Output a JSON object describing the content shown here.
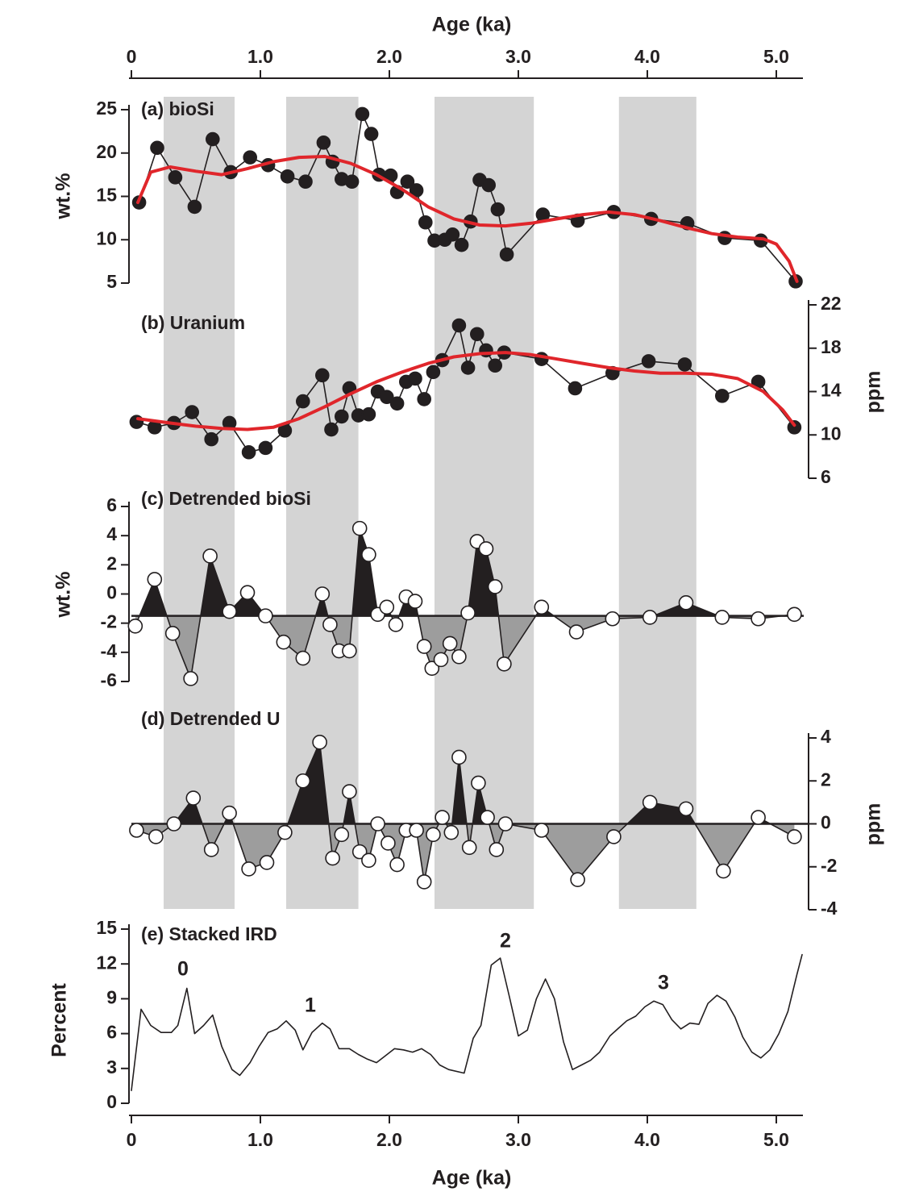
{
  "chart_data": [
    {
      "type": "line",
      "title": "(a) bioSi",
      "ylabel": "wt.%",
      "y_axis_side": "left",
      "xlabel": "Age (ka)",
      "x_axis_side": "top",
      "xlim": [
        0,
        5.2
      ],
      "xticks": [
        0,
        {
          "value": 1,
          "label": "1.0"
        },
        {
          "value": 2,
          "label": "2.0"
        },
        {
          "value": 3,
          "label": "3.0"
        },
        {
          "value": 4,
          "label": "4.0"
        },
        {
          "value": 5,
          "label": "5.0"
        }
      ],
      "shaded_intervals": [
        [
          0.25,
          0.8
        ],
        [
          1.2,
          1.76
        ],
        [
          2.35,
          3.12
        ],
        [
          3.78,
          4.38
        ]
      ],
      "shading_color": "#d4d4d4",
      "ylim": [
        5,
        25
      ],
      "yticks": [
        5,
        10,
        15,
        20,
        25
      ],
      "series": [
        {
          "x": [
            0.06,
            0.2,
            0.34,
            0.49,
            0.63,
            0.77,
            0.92,
            1.06,
            1.21,
            1.35,
            1.49,
            1.56,
            1.63,
            1.71,
            1.79,
            1.86,
            1.92,
            2.01,
            2.06,
            2.14,
            2.21,
            2.28,
            2.35,
            2.43,
            2.49,
            2.56,
            2.63,
            2.7,
            2.77,
            2.84,
            2.91,
            3.19,
            3.46,
            3.74,
            4.03,
            4.31,
            4.6,
            4.88,
            5.15
          ],
          "values": [
            14.3,
            20.6,
            17.2,
            13.8,
            21.6,
            17.8,
            19.5,
            18.6,
            17.3,
            16.7,
            21.2,
            19.0,
            17.0,
            16.7,
            24.5,
            22.2,
            17.5,
            17.4,
            15.5,
            16.7,
            15.7,
            12.0,
            9.9,
            10.0,
            10.6,
            9.4,
            12.1,
            16.9,
            16.3,
            13.5,
            8.3,
            12.9,
            12.2,
            13.2,
            12.4,
            11.9,
            10.2,
            9.9,
            5.2
          ],
          "color": "#231f20",
          "marker": "filled"
        },
        {
          "x": [
            0.05,
            0.15,
            0.3,
            0.5,
            0.7,
            0.9,
            1.1,
            1.3,
            1.5,
            1.7,
            1.9,
            2.1,
            2.3,
            2.5,
            2.7,
            2.9,
            3.1,
            3.3,
            3.5,
            3.7,
            3.9,
            4.1,
            4.3,
            4.5,
            4.7,
            4.9,
            5.0,
            5.1,
            5.16
          ],
          "values": [
            14.3,
            17.8,
            18.4,
            17.9,
            17.5,
            18.2,
            19.0,
            19.5,
            19.6,
            18.8,
            17.5,
            15.8,
            13.8,
            12.4,
            11.7,
            11.6,
            11.9,
            12.4,
            12.9,
            13.2,
            12.9,
            12.2,
            11.4,
            10.7,
            10.3,
            10.1,
            9.5,
            7.5,
            5.2
          ],
          "color": "#e0262b",
          "marker": "none"
        }
      ]
    },
    {
      "type": "line",
      "title": "(b) Uranium",
      "ylabel": "ppm",
      "y_axis_side": "right",
      "ylim": [
        6,
        22
      ],
      "yticks": [
        6,
        10,
        14,
        18,
        22
      ],
      "series": [
        {
          "x": [
            0.04,
            0.18,
            0.33,
            0.47,
            0.62,
            0.76,
            0.91,
            1.04,
            1.19,
            1.33,
            1.48,
            1.55,
            1.63,
            1.69,
            1.76,
            1.84,
            1.91,
            1.98,
            2.06,
            2.13,
            2.2,
            2.27,
            2.34,
            2.41,
            2.54,
            2.61,
            2.68,
            2.75,
            2.82,
            2.89,
            3.18,
            3.44,
            3.73,
            4.01,
            4.29,
            4.58,
            4.86,
            5.14
          ],
          "values": [
            11.2,
            10.7,
            11.1,
            12.1,
            9.6,
            11.1,
            8.4,
            8.8,
            10.4,
            13.1,
            15.5,
            10.5,
            11.7,
            14.3,
            11.8,
            11.9,
            14.0,
            13.5,
            12.9,
            14.9,
            15.2,
            13.3,
            15.8,
            16.9,
            20.1,
            16.2,
            19.3,
            17.8,
            16.4,
            17.6,
            17.0,
            14.3,
            15.7,
            16.8,
            16.5,
            13.6,
            14.9,
            10.7
          ],
          "color": "#231f20",
          "marker": "filled"
        },
        {
          "x": [
            0.05,
            0.3,
            0.5,
            0.7,
            0.9,
            1.1,
            1.3,
            1.5,
            1.7,
            1.9,
            2.1,
            2.3,
            2.5,
            2.7,
            2.9,
            3.1,
            3.3,
            3.5,
            3.7,
            3.9,
            4.1,
            4.3,
            4.5,
            4.7,
            4.9,
            5.05,
            5.14
          ],
          "values": [
            11.5,
            11.1,
            10.8,
            10.6,
            10.5,
            10.7,
            11.5,
            12.6,
            13.8,
            14.9,
            15.8,
            16.6,
            17.2,
            17.5,
            17.6,
            17.4,
            17.0,
            16.6,
            16.2,
            15.9,
            15.7,
            15.7,
            15.6,
            15.2,
            14.0,
            12.3,
            10.9
          ],
          "color": "#e0262b",
          "marker": "none"
        }
      ]
    },
    {
      "type": "area",
      "title": "(c) Detrended bioSi",
      "ylabel": "wt.%",
      "y_axis_side": "left",
      "ylim": [
        -6,
        6
      ],
      "yticks": [
        -6,
        -4,
        -2,
        0,
        2,
        4,
        6
      ],
      "baseline": -1.5,
      "positive_color": "#231f20",
      "negative_color": "#9d9d9d",
      "series": [
        {
          "x": [
            0.03,
            0.18,
            0.32,
            0.46,
            0.61,
            0.76,
            0.9,
            1.04,
            1.18,
            1.33,
            1.48,
            1.54,
            1.61,
            1.69,
            1.77,
            1.84,
            1.91,
            1.98,
            2.05,
            2.13,
            2.2,
            2.27,
            2.33,
            2.4,
            2.47,
            2.54,
            2.61,
            2.68,
            2.75,
            2.82,
            2.89,
            3.18,
            3.45,
            3.73,
            4.02,
            4.3,
            4.58,
            4.86,
            5.14
          ],
          "values": [
            -2.2,
            1.0,
            -2.7,
            -5.8,
            2.6,
            -1.2,
            0.1,
            -1.5,
            -3.3,
            -4.4,
            0.0,
            -2.1,
            -3.9,
            -3.9,
            4.5,
            2.7,
            -1.4,
            -0.9,
            -2.1,
            -0.2,
            -0.5,
            -3.6,
            -5.1,
            -4.5,
            -3.4,
            -4.3,
            -1.3,
            3.6,
            3.1,
            0.5,
            -4.8,
            -0.9,
            -2.6,
            -1.7,
            -1.6,
            -0.6,
            -1.6,
            -1.7,
            -1.4
          ],
          "color": "#231f20",
          "marker": "open"
        }
      ]
    },
    {
      "type": "area",
      "title": "(d) Detrended U",
      "ylabel": "ppm",
      "y_axis_side": "right",
      "ylim": [
        -4,
        4
      ],
      "yticks": [
        -4,
        -2,
        0,
        2,
        4
      ],
      "baseline": 0,
      "positive_color": "#231f20",
      "negative_color": "#9d9d9d",
      "series": [
        {
          "x": [
            0.04,
            0.19,
            0.33,
            0.48,
            0.62,
            0.76,
            0.91,
            1.05,
            1.19,
            1.33,
            1.46,
            1.56,
            1.63,
            1.69,
            1.77,
            1.84,
            1.91,
            1.99,
            2.06,
            2.13,
            2.21,
            2.27,
            2.34,
            2.41,
            2.48,
            2.54,
            2.62,
            2.69,
            2.76,
            2.83,
            2.9,
            3.18,
            3.46,
            3.74,
            4.02,
            4.3,
            4.59,
            4.86,
            5.14
          ],
          "values": [
            -0.3,
            -0.6,
            0.0,
            1.2,
            -1.2,
            0.5,
            -2.1,
            -1.8,
            -0.4,
            2.0,
            3.8,
            -1.6,
            -0.5,
            1.5,
            -1.3,
            -1.7,
            0.0,
            -0.9,
            -1.9,
            -0.3,
            -0.3,
            -2.7,
            -0.5,
            0.3,
            -0.4,
            3.1,
            -1.1,
            1.9,
            0.3,
            -1.2,
            0.0,
            -0.3,
            -2.6,
            -0.6,
            1.0,
            0.7,
            -2.2,
            0.3,
            -0.6
          ],
          "color": "#231f20",
          "marker": "open"
        }
      ]
    },
    {
      "type": "line",
      "title": "(e) Stacked IRD",
      "ylabel": "Percent",
      "y_axis_side": "left",
      "xlabel": "Age (ka)",
      "x_axis_side": "bottom",
      "xlim": [
        0,
        5.2
      ],
      "xticks": [
        0,
        {
          "value": 1,
          "label": "1.0"
        },
        {
          "value": 2,
          "label": "2.0"
        },
        {
          "value": 3,
          "label": "3.0"
        },
        {
          "value": 4,
          "label": "4.0"
        },
        {
          "value": 5,
          "label": "5.0"
        }
      ],
      "ylim": [
        0,
        15
      ],
      "yticks": [
        0,
        3,
        6,
        9,
        12,
        15
      ],
      "annotations": [
        "0",
        "1",
        "2",
        "3"
      ],
      "series": [
        {
          "x": [
            0,
            0.075,
            0.15,
            0.23,
            0.31,
            0.36,
            0.43,
            0.49,
            0.56,
            0.63,
            0.7,
            0.78,
            0.84,
            0.92,
            0.99,
            1.06,
            1.13,
            1.2,
            1.27,
            1.33,
            1.4,
            1.48,
            1.54,
            1.61,
            1.69,
            1.76,
            1.83,
            1.9,
            1.97,
            2.04,
            2.11,
            2.18,
            2.25,
            2.32,
            2.39,
            2.46,
            2.58,
            2.65,
            2.71,
            2.79,
            2.86,
            2.93,
            3.0,
            3.07,
            3.14,
            3.21,
            3.28,
            3.35,
            3.42,
            3.49,
            3.56,
            3.63,
            3.71,
            3.78,
            3.84,
            3.91,
            3.98,
            4.05,
            4.12,
            4.19,
            4.26,
            4.33,
            4.4,
            4.47,
            4.54,
            4.61,
            4.68,
            4.74,
            4.81,
            4.88,
            4.95,
            5.02,
            5.09,
            5.16,
            5.2
          ],
          "values": [
            1.1,
            8.1,
            6.7,
            6.1,
            6.1,
            6.7,
            9.9,
            6.0,
            6.7,
            7.6,
            4.9,
            2.9,
            2.4,
            3.5,
            4.9,
            6.1,
            6.4,
            7.1,
            6.3,
            4.6,
            6.1,
            6.9,
            6.4,
            4.7,
            4.7,
            4.2,
            3.8,
            3.5,
            4.1,
            4.7,
            4.6,
            4.4,
            4.7,
            4.2,
            3.3,
            2.9,
            2.6,
            5.6,
            6.7,
            11.9,
            12.5,
            9.2,
            5.8,
            6.3,
            9.0,
            10.7,
            9.0,
            5.3,
            2.9,
            3.3,
            3.7,
            4.4,
            5.8,
            6.5,
            7.1,
            7.5,
            8.3,
            8.8,
            8.5,
            7.2,
            6.4,
            6.9,
            6.8,
            8.6,
            9.3,
            8.8,
            7.4,
            5.7,
            4.4,
            3.9,
            4.6,
            6.0,
            7.9,
            11.1,
            12.8
          ],
          "color": "#231f20",
          "marker": "none"
        }
      ]
    }
  ]
}
